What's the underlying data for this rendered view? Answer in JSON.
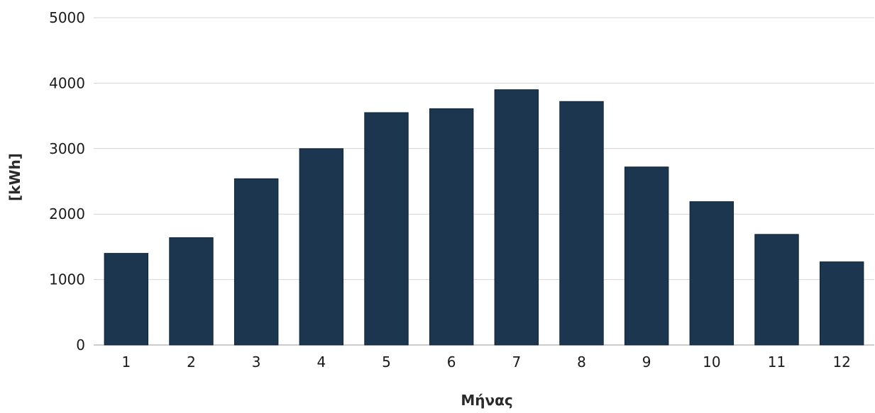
{
  "chart_data": {
    "type": "bar",
    "categories": [
      "1",
      "2",
      "3",
      "4",
      "5",
      "6",
      "7",
      "8",
      "9",
      "10",
      "11",
      "12"
    ],
    "values": [
      1400,
      1640,
      2540,
      3000,
      3550,
      3610,
      3900,
      3720,
      2720,
      2190,
      1690,
      1270
    ],
    "xlabel": "Μήνας",
    "ylabel": "[kWh]",
    "ylim": [
      0,
      5000
    ],
    "yticks": [
      "0",
      "1000",
      "2000",
      "3000",
      "4000",
      "5000"
    ],
    "grid": true,
    "legend": "none",
    "bar_color": "#1c3650",
    "grid_color": "#d4d4d4"
  }
}
